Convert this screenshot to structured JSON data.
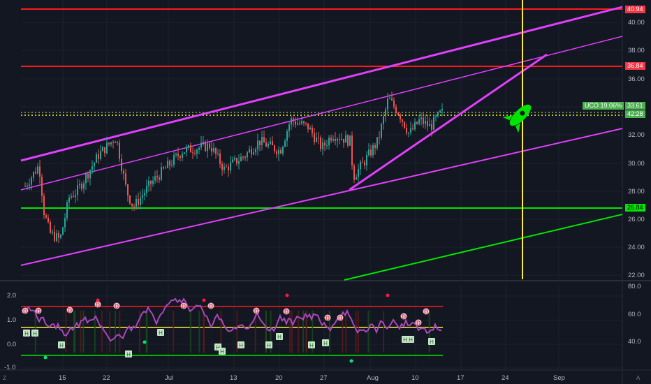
{
  "price_axis": {
    "ticks": [
      "40.00",
      "38.00",
      "36.00",
      "32.00",
      "30.00",
      "28.00",
      "26.00",
      "24.00",
      "22.00"
    ],
    "tags": [
      {
        "text": "40.94",
        "bg": "#f23645",
        "fg": "#ffffff"
      },
      {
        "text": "36.84",
        "bg": "#f23645",
        "fg": "#ffffff"
      },
      {
        "text": "33.61",
        "bg": "#4caf50",
        "fg": "#ffffff"
      },
      {
        "text": "42:28",
        "bg": "#4caf50",
        "fg": "#ffffff"
      },
      {
        "text": "26.84",
        "bg": "#00e600",
        "fg": "#000000"
      }
    ]
  },
  "symbol_badge": {
    "text": "UCO  19.06%"
  },
  "indicator_axis": {
    "right_ticks": [
      "80.0",
      "60.0",
      "40.0"
    ],
    "left_ticks": [
      "2.0",
      "1.0",
      "0.0",
      "-1.0"
    ]
  },
  "time_axis": {
    "ticks": [
      "15",
      "22",
      "Jul",
      "13",
      "20",
      "27",
      "Aug",
      "10",
      "17",
      "24",
      "Sep"
    ]
  },
  "corners": {
    "bottom_left": "Z",
    "bottom_right": "A"
  },
  "colors": {
    "background": "#131722",
    "up": "#26a69a",
    "down": "#ef5350",
    "channel": "#e040fb",
    "red_level": "#ff1a1a",
    "green_level": "#00e600",
    "yellow_line": "#ffeb3b",
    "rocket": "#00e600"
  },
  "markers": {
    "divergence": "D",
    "hidden": "H"
  }
}
